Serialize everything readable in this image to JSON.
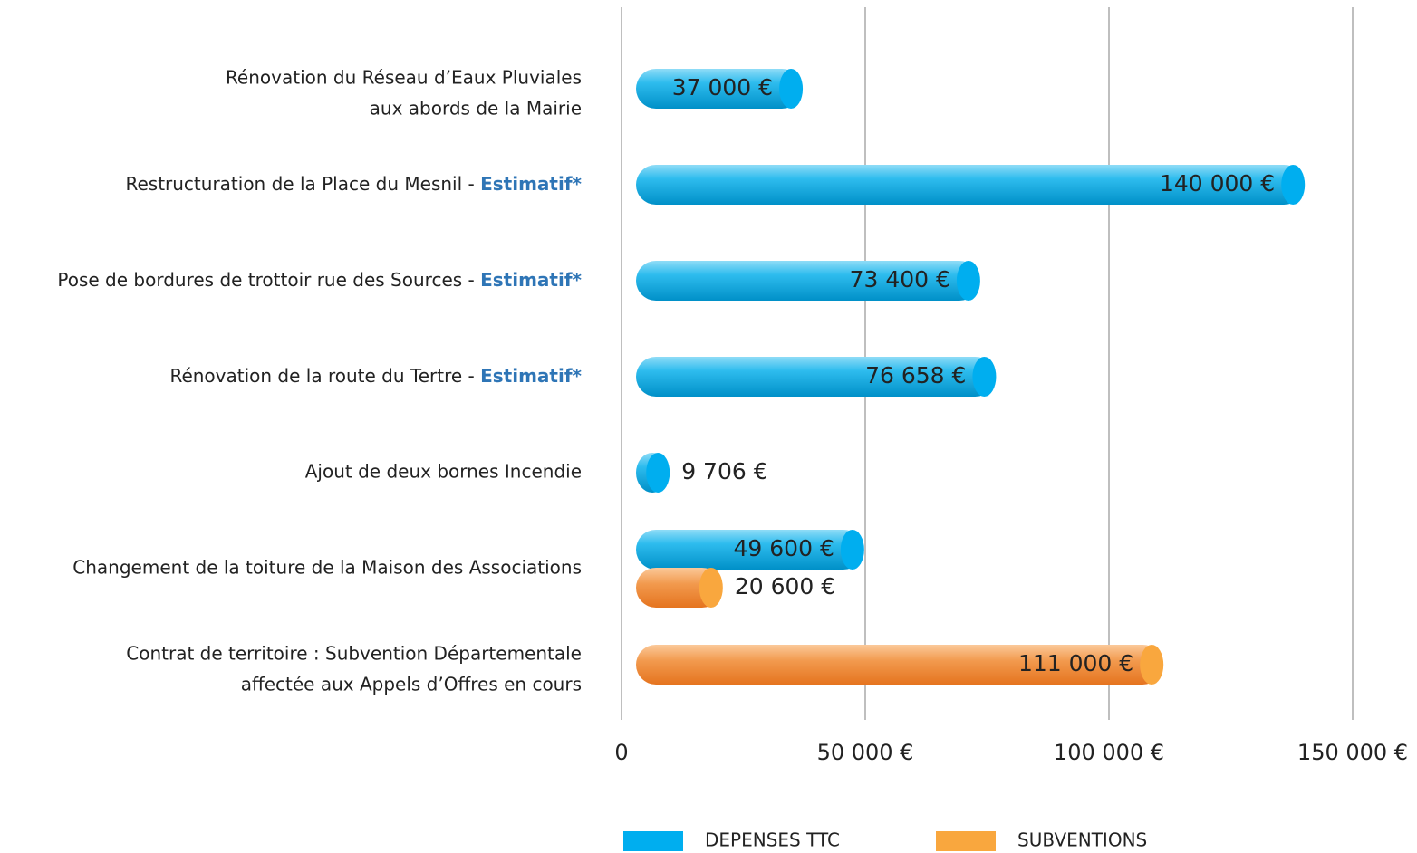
{
  "chart_data": {
    "type": "bar",
    "orientation": "horizontal",
    "categories": [
      [
        "Rénovation du Réseau d’Eaux Pluviales",
        "aux abords de la Mairie"
      ],
      [
        "Restructuration de la Place du Mesnil - Estimatif*"
      ],
      [
        "Pose de bordures de trottoir rue des Sources - Estimatif*"
      ],
      [
        "Rénovation de la route du Tertre - Estimatif*"
      ],
      [
        "Ajout de deux bornes Incendie"
      ],
      [
        "Changement de la toiture de la Maison des Associations"
      ],
      [
        "Contrat de territoire : Subvention Départementale",
        "affectée aux Appels d’Offres en cours"
      ]
    ],
    "series": [
      {
        "name": "DEPENSES TTC",
        "color": "#00aeef",
        "values": [
          37000,
          140000,
          73400,
          76658,
          9706,
          49600,
          null
        ],
        "value_labels": [
          "37 000 €",
          "140 000 €",
          "73 400 €",
          "76 658 €",
          "9 706 €",
          "49 600 €",
          null
        ]
      },
      {
        "name": "SUBVENTIONS",
        "color": "#f9a73e",
        "values": [
          null,
          null,
          null,
          null,
          null,
          20600,
          111000
        ],
        "value_labels": [
          null,
          null,
          null,
          null,
          null,
          "20 600 €",
          "111 000 €"
        ]
      }
    ],
    "xlim": [
      0,
      150000
    ],
    "xticks": [
      0,
      {
        "value": 50000,
        "label": "50 000 €"
      },
      {
        "value": 100000,
        "label": "100 000 €"
      },
      {
        "value": 150000,
        "label": "150 000 €"
      }
    ],
    "grid": true,
    "legend": "bottom"
  }
}
